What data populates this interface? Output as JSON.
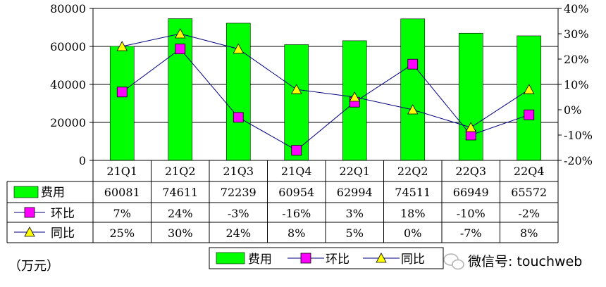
{
  "chart_data": {
    "type": "bar",
    "categories": [
      "21Q1",
      "21Q2",
      "21Q3",
      "21Q4",
      "22Q1",
      "22Q2",
      "22Q3",
      "22Q4"
    ],
    "series": [
      {
        "name": "费用",
        "type": "bar",
        "axis": "left",
        "color": "#00ff00",
        "values": [
          60081,
          74611,
          72239,
          60954,
          62994,
          74511,
          66949,
          65572
        ],
        "labels": [
          "60081",
          "74611",
          "72239",
          "60954",
          "62994",
          "74511",
          "66949",
          "65572"
        ]
      },
      {
        "name": "环比",
        "type": "line",
        "axis": "right",
        "marker": "square",
        "color": "#ff00ff",
        "values": [
          0.07,
          0.24,
          -0.03,
          -0.16,
          0.03,
          0.18,
          -0.1,
          -0.02
        ],
        "labels": [
          "7%",
          "24%",
          "-3%",
          "-16%",
          "3%",
          "18%",
          "-10%",
          "-2%"
        ]
      },
      {
        "name": "同比",
        "type": "line",
        "axis": "right",
        "marker": "triangle",
        "color": "#ffff00",
        "values": [
          0.25,
          0.3,
          0.24,
          0.08,
          0.05,
          0.0,
          -0.07,
          0.08
        ],
        "labels": [
          "25%",
          "30%",
          "24%",
          "8%",
          "5%",
          "0%",
          "-7%",
          "8%"
        ]
      }
    ],
    "y_left": {
      "min": 0,
      "max": 80000,
      "ticks": [
        "0",
        "20000",
        "40000",
        "60000",
        "80000"
      ]
    },
    "y_right": {
      "min": -0.2,
      "max": 0.4,
      "ticks": [
        "-20%",
        "-10%",
        "0%",
        "10%",
        "20%",
        "30%",
        "40%"
      ]
    },
    "unit_label": "（万元）",
    "legend": {
      "placement": "bottom",
      "items": [
        "费用",
        "环比",
        "同比"
      ]
    },
    "data_table": true,
    "grid": true
  },
  "watermark": {
    "text": "微信号: touchweb",
    "icon": "wechat-icon"
  }
}
